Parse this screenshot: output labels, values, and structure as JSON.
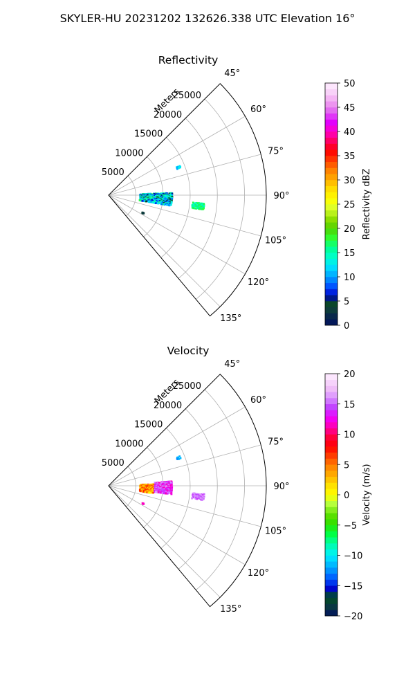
{
  "figure": {
    "suptitle": "SKYLER-HU  20231202  132626.338 UTC Elevation 16°"
  },
  "chart_data": [
    {
      "type": "polar-sector",
      "title": "Reflectivity",
      "radial_label": "Meters",
      "radial_ticks": [
        5000,
        10000,
        15000,
        20000,
        25000
      ],
      "radial_tick_labels": [
        "5000",
        "10000",
        "15000",
        "20000",
        "25000"
      ],
      "r_max": 29000,
      "theta_range": [
        45,
        140
      ],
      "theta_ticks": [
        45,
        60,
        75,
        90,
        105,
        120,
        135
      ],
      "theta_tick_labels": [
        "45°",
        "60°",
        "75°",
        "90°",
        "105°",
        "120°",
        "135°"
      ],
      "grid": true,
      "colorbar": {
        "label": "Reflectivity dBZ",
        "min": 0,
        "max": 50,
        "ticks": [
          0,
          5,
          10,
          15,
          20,
          25,
          30,
          35,
          40,
          45,
          50
        ],
        "tick_labels": [
          "0",
          "5",
          "10",
          "15",
          "20",
          "25",
          "30",
          "35",
          "40",
          "45",
          "50"
        ]
      },
      "echoes": [
        {
          "theta_range": [
            88,
            100
          ],
          "r_range": [
            5800,
            11800
          ],
          "value_range": [
            4,
            18
          ]
        },
        {
          "theta_range": [
            95,
            99
          ],
          "r_range": [
            15500,
            17800
          ],
          "value_range": [
            14,
            18
          ]
        },
        {
          "theta_range": [
            67.5,
            69.5
          ],
          "r_range": [
            13500,
            14300
          ],
          "value_range": [
            10,
            13
          ]
        },
        {
          "theta_range": [
            117,
            118
          ],
          "r_range": [
            7000,
            7300
          ],
          "value_range": [
            2,
            4
          ]
        }
      ]
    },
    {
      "type": "polar-sector",
      "title": "Velocity",
      "radial_label": "Meters",
      "radial_ticks": [
        5000,
        10000,
        15000,
        20000,
        25000
      ],
      "radial_tick_labels": [
        "5000",
        "10000",
        "15000",
        "20000",
        "25000"
      ],
      "r_max": 29000,
      "theta_range": [
        45,
        140
      ],
      "theta_ticks": [
        45,
        60,
        75,
        90,
        105,
        120,
        135
      ],
      "theta_tick_labels": [
        "45°",
        "60°",
        "75°",
        "90°",
        "105°",
        "120°",
        "135°"
      ],
      "grid": true,
      "colorbar": {
        "label": "Velocity (m/s)",
        "min": -20,
        "max": 20,
        "ticks": [
          -20,
          -15,
          -10,
          -5,
          0,
          5,
          10,
          15,
          20
        ],
        "tick_labels": [
          "−20",
          "−15",
          "−10",
          "−5",
          "0",
          "5",
          "10",
          "15",
          "20"
        ]
      },
      "echoes": [
        {
          "theta_range": [
            88,
            100
          ],
          "r_range": [
            5800,
            8500
          ],
          "value_range": [
            0,
            8
          ]
        },
        {
          "theta_range": [
            86,
            98
          ],
          "r_range": [
            8500,
            11800
          ],
          "value_range": [
            11,
            17
          ]
        },
        {
          "theta_range": [
            95,
            99
          ],
          "r_range": [
            15500,
            17800
          ],
          "value_range": [
            14,
            17
          ]
        },
        {
          "theta_range": [
            67.5,
            69.5
          ],
          "r_range": [
            13500,
            14300
          ],
          "value_range": [
            -13,
            -11
          ]
        },
        {
          "theta_range": [
            117,
            118
          ],
          "r_range": [
            7000,
            7300
          ],
          "value_range": [
            10,
            12
          ]
        }
      ]
    }
  ],
  "colors": {
    "grid": "#b0b0b0",
    "frame": "#000000"
  }
}
